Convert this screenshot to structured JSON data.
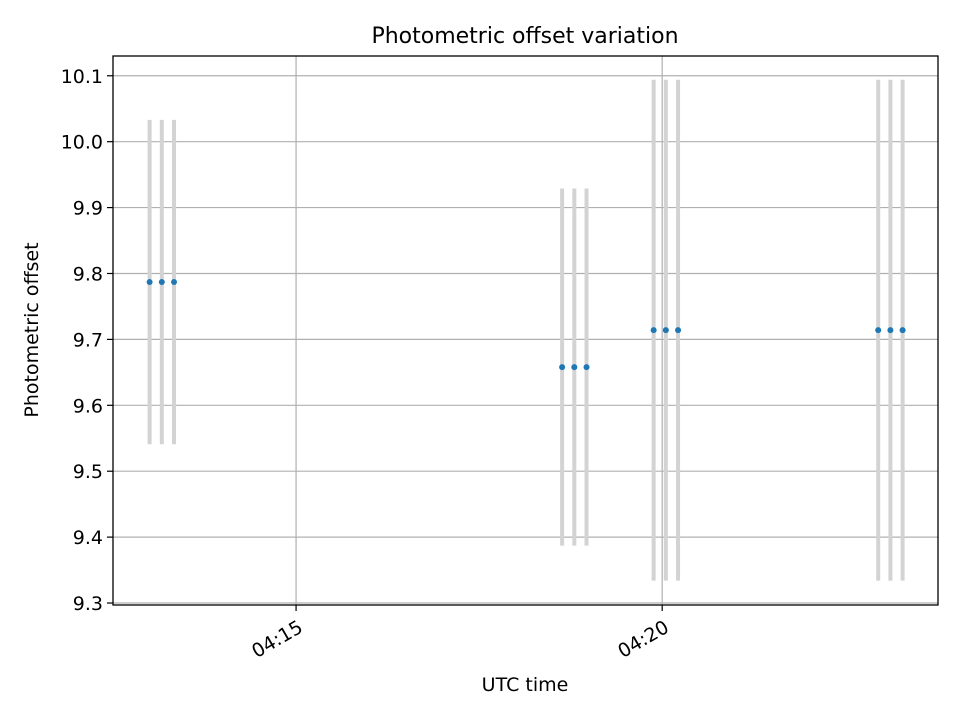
{
  "chart_data": {
    "type": "scatter",
    "title": "Photometric offset variation",
    "xlabel": "UTC time",
    "ylabel": "Photometric offset",
    "grid": true,
    "xlim": [
      "04:12:30",
      "04:23:46"
    ],
    "ylim": [
      9.297,
      10.13
    ],
    "x_ticks": [
      "04:15",
      "04:20"
    ],
    "y_ticks": [
      9.3,
      9.4,
      9.5,
      9.6,
      9.7,
      9.8,
      9.9,
      10.0,
      10.1
    ],
    "points_color": "#1f77b4",
    "errorbar_color": "#d3d3d3",
    "points": [
      {
        "t": "04:13:00",
        "y": 9.787,
        "err": 0.246
      },
      {
        "t": "04:13:10",
        "y": 9.787,
        "err": 0.246
      },
      {
        "t": "04:13:20",
        "y": 9.787,
        "err": 0.246
      },
      {
        "t": "04:18:38",
        "y": 9.658,
        "err": 0.271
      },
      {
        "t": "04:18:48",
        "y": 9.658,
        "err": 0.271
      },
      {
        "t": "04:18:58",
        "y": 9.658,
        "err": 0.271
      },
      {
        "t": "04:19:53",
        "y": 9.714,
        "err": 0.38
      },
      {
        "t": "04:20:03",
        "y": 9.714,
        "err": 0.38
      },
      {
        "t": "04:20:13",
        "y": 9.714,
        "err": 0.38
      },
      {
        "t": "04:22:57",
        "y": 9.714,
        "err": 0.38
      },
      {
        "t": "04:23:07",
        "y": 9.714,
        "err": 0.38
      },
      {
        "t": "04:23:17",
        "y": 9.714,
        "err": 0.38
      }
    ]
  }
}
